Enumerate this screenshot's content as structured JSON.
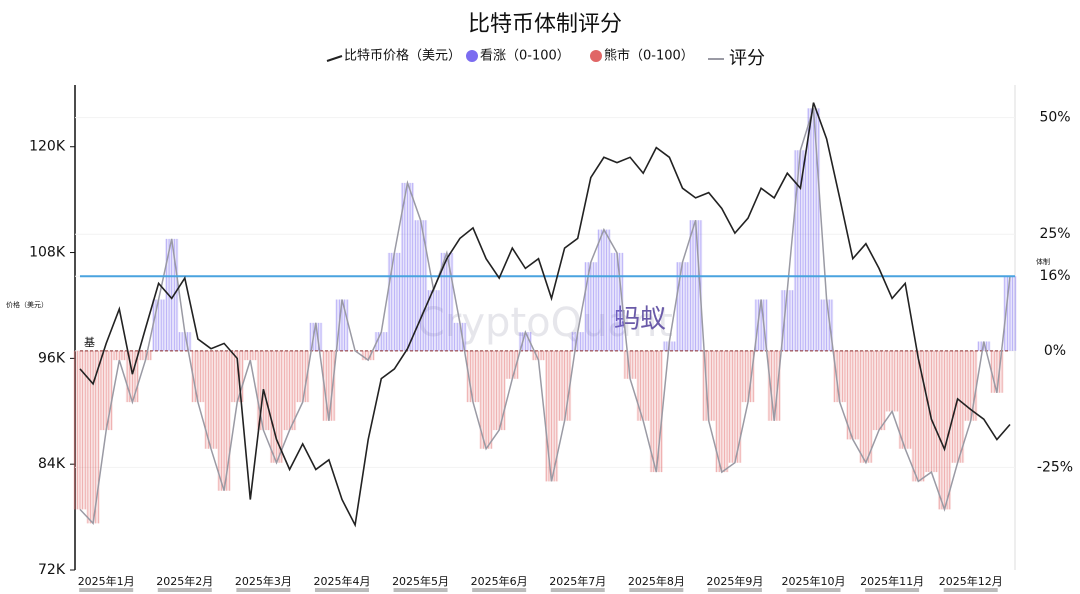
{
  "chart_data": {
    "type": "line",
    "title": "比特币体制评分",
    "y_label": "价格（美元）",
    "y2_label": "体制",
    "annotations": [
      "蚂蚁",
      "CryptoQuant",
      "基"
    ],
    "categories": [
      "2025年1月",
      null,
      null,
      null,
      null,
      null,
      "2025年2月",
      null,
      null,
      null,
      null,
      null,
      "2025年3月",
      null,
      null,
      null,
      null,
      null,
      "2025年4月",
      null,
      null,
      null,
      null,
      null,
      "2025年5月",
      null,
      null,
      null,
      null,
      null,
      "2025年6月",
      null,
      null,
      null,
      null,
      null,
      "2025年7月",
      null,
      null,
      null,
      null,
      null,
      "2025年8月",
      null,
      null,
      null,
      null,
      null,
      "2025年9月",
      null,
      null,
      null,
      null,
      null,
      "2025年10月",
      null,
      null,
      null,
      null,
      null,
      "2025年11月",
      null,
      null,
      null,
      null,
      null,
      "2025年12月",
      null,
      null,
      null,
      null,
      null
    ],
    "series": [
      {
        "name": "比特币价格（美元）",
        "color": "#222222",
        "values": [
          94800,
          93100,
          97700,
          101600,
          94200,
          99400,
          104500,
          102800,
          105100,
          98200,
          97100,
          97700,
          96000,
          80000,
          92500,
          86800,
          83400,
          86300,
          83400,
          84500,
          80000,
          77100,
          86800,
          93700,
          94800,
          97100,
          100500,
          103900,
          107300,
          109600,
          110800,
          107300,
          105100,
          108500,
          106200,
          107300,
          102800,
          108500,
          109600,
          116500,
          118800,
          118200,
          118800,
          117000,
          119900,
          118800,
          115300,
          114200,
          114800,
          113000,
          110200,
          111900,
          115300,
          114200,
          117000,
          115300,
          125000,
          120900,
          114200,
          107300,
          109000,
          106200,
          102800,
          104500,
          96000,
          89100,
          85700,
          91400,
          90200,
          89100,
          86800,
          88500
        ]
      },
      {
        "name": "评分",
        "color": "#9a9aa4",
        "axis": "y2",
        "values": [
          -34,
          -37,
          -17,
          -2,
          -11,
          -2,
          11,
          24,
          4,
          -11,
          -21,
          -30,
          -11,
          -2,
          -17,
          -24,
          -17,
          -11,
          6,
          -15,
          11,
          0,
          -2,
          4,
          21,
          36,
          28,
          13,
          21,
          6,
          -11,
          -21,
          -17,
          -6,
          4,
          -2,
          -28,
          -15,
          4,
          19,
          26,
          21,
          -6,
          -15,
          -26,
          2,
          19,
          28,
          -15,
          -26,
          -24,
          -11,
          11,
          -15,
          13,
          43,
          52,
          11,
          -11,
          -19,
          -24,
          -17,
          -13,
          -21,
          -28,
          -26,
          -34,
          -24,
          -15,
          2,
          -9,
          16
        ]
      }
    ],
    "bull": {
      "name": "看涨（0-100）",
      "color": "#7b6cf0"
    },
    "bear": {
      "name": "熊市（0-100）",
      "color": "#e06666"
    },
    "hline": {
      "value": 16,
      "color": "#4aa3df"
    },
    "ylim": [
      72000,
      127000
    ],
    "yticks": [
      {
        "value": 72000,
        "label": "72K"
      },
      {
        "value": 84000,
        "label": "84K"
      },
      {
        "value": 96000,
        "label": "96K"
      },
      {
        "value": 108000,
        "label": "108K"
      },
      {
        "value": 120000,
        "label": "120K"
      }
    ],
    "y2lim": [
      -47,
      57
    ],
    "y2ticks": [
      {
        "value": -25,
        "label": "-25%"
      },
      {
        "value": 0,
        "label": "0%"
      },
      {
        "value": 16,
        "label": "16%"
      },
      {
        "value": 25,
        "label": "25%"
      },
      {
        "value": 50,
        "label": "50%"
      }
    ]
  }
}
